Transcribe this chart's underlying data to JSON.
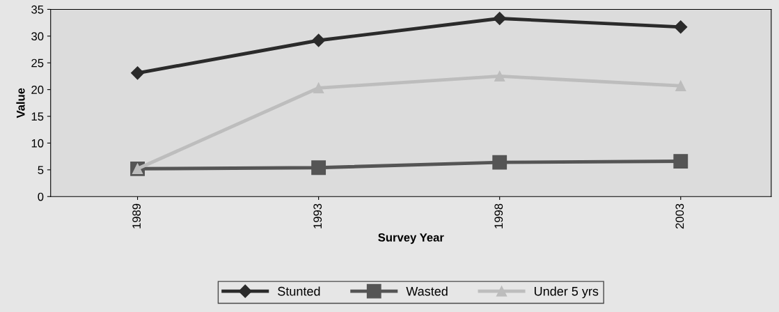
{
  "chart_data": {
    "type": "line",
    "xlabel": "Survey Year",
    "ylabel": "Value",
    "categories": [
      "1989",
      "1993",
      "1998",
      "2003"
    ],
    "series": [
      {
        "name": "Stunted",
        "color": "#2b2b2b",
        "marker": "diamond",
        "values": [
          23.1,
          29.2,
          33.3,
          31.7
        ]
      },
      {
        "name": "Wasted",
        "color": "#555555",
        "marker": "square",
        "values": [
          5.2,
          5.4,
          6.4,
          6.6
        ]
      },
      {
        "name": "Under 5 yrs",
        "color": "#bdbdbd",
        "marker": "triangle",
        "values": [
          5.2,
          20.3,
          22.5,
          20.7
        ]
      }
    ],
    "ylim": [
      0,
      35
    ],
    "yticks": [
      0,
      5,
      10,
      15,
      20,
      25,
      30,
      35
    ],
    "grid": false,
    "legend": "bottom"
  }
}
